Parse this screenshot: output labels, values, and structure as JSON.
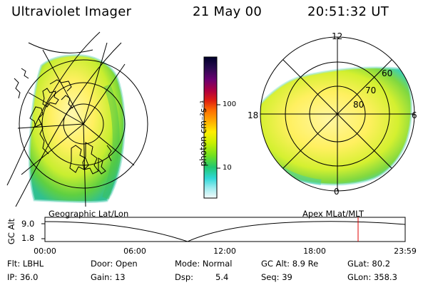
{
  "header": {
    "instrument": "Ultraviolet Imager",
    "date": "21 May 00",
    "time": "20:51:32 UT"
  },
  "colorbar": {
    "unit_label": "photon cm⁻²s⁻¹",
    "ticks": [
      "100",
      "10"
    ],
    "colors": [
      "#000030",
      "#1a0a40",
      "#500060",
      "#a00050",
      "#e00020",
      "#ff6000",
      "#ffa000",
      "#ffe000",
      "#c0f000",
      "#70e000",
      "#20d080",
      "#40e0e0",
      "#a0f0f0",
      "#e8f8f8"
    ]
  },
  "geo_panel": {
    "label": "Geographic Lat/Lon"
  },
  "mag_panel": {
    "label": "Apex MLat/MLT",
    "mlt_labels": {
      "top": "12",
      "left": "18",
      "right": "6",
      "bottom": "0"
    },
    "lat_labels": [
      "60",
      "70",
      "80"
    ]
  },
  "timeline": {
    "ylabel": "GC Alt",
    "yticks": [
      "9.0",
      "1.8"
    ],
    "xticks": [
      "00:00",
      "06:00",
      "12:00",
      "18:00",
      "23:59"
    ],
    "marker_color": "#e00000"
  },
  "info": {
    "filter": "Flt: LBHL",
    "ip": "IP: 36.0",
    "door": "Door: Open",
    "gain": "Gain: 13",
    "mode": "Mode: Normal",
    "dsp_label": "Dsp:",
    "dsp_value": "5.4",
    "gc_alt": "GC Alt: 8.9 Re",
    "seq": "Seq: 39",
    "glat": "GLat: 80.2",
    "glon": "GLon: 358.3"
  }
}
